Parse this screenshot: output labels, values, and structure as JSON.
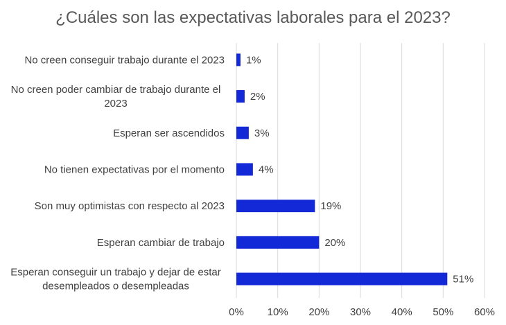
{
  "chart_data": {
    "type": "bar",
    "orientation": "horizontal",
    "title": "¿Cuáles son las expectativas laborales para el 2023?",
    "categories": [
      "No creen conseguir trabajo durante el 2023",
      "No creen poder cambiar de trabajo durante el 2023",
      "Esperan ser ascendidos",
      "No tienen expectativas por el momento",
      "Son muy optimistas con respecto al 2023",
      "Esperan cambiar de trabajo",
      "Esperan conseguir un trabajo y dejar de estar desempleados o desempleadas"
    ],
    "category_lines": [
      [
        "No creen conseguir trabajo durante el 2023"
      ],
      [
        "No creen poder cambiar de trabajo durante el",
        "2023"
      ],
      [
        "Esperan ser ascendidos"
      ],
      [
        "No tienen expectativas por el momento"
      ],
      [
        "Son muy optimistas con respecto al 2023"
      ],
      [
        "Esperan cambiar de trabajo"
      ],
      [
        "Esperan conseguir un trabajo y dejar de estar",
        "desempleados o desempleadas"
      ]
    ],
    "values": [
      1,
      2,
      3,
      4,
      19,
      20,
      51
    ],
    "data_labels": [
      "1%",
      "2%",
      "3%",
      "4%",
      "19%",
      "20%",
      "51%"
    ],
    "xlim": [
      0,
      60
    ],
    "ticks": [
      0,
      10,
      20,
      30,
      40,
      50,
      60
    ],
    "tick_labels": [
      "0%",
      "10%",
      "20%",
      "30%",
      "40%",
      "50%",
      "60%"
    ],
    "xlabel": "",
    "ylabel": "",
    "grid": true,
    "legend": "none",
    "bar_color": "#1328D6",
    "grid_color": "#D9D9D9"
  }
}
